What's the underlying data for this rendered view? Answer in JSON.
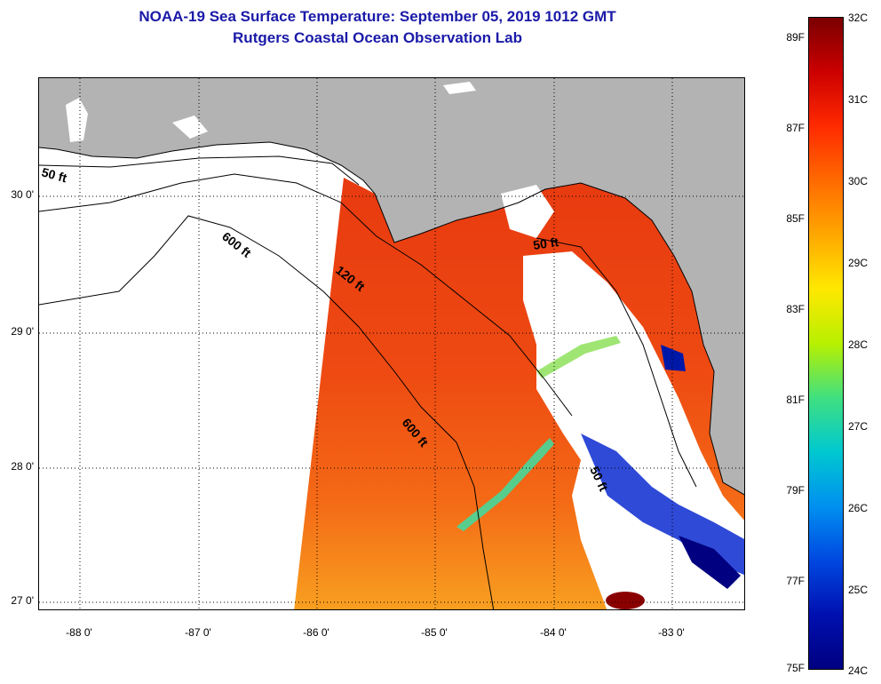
{
  "title_line1": "NOAA-19 Sea Surface Temperature:  September 05, 2019 1012 GMT",
  "title_line2": "Rutgers Coastal Ocean Observation Lab",
  "lat_labels": [
    "30 0'",
    "29 0'",
    "28 0'",
    "27 0'"
  ],
  "lon_labels": [
    "-88 0'",
    "-87 0'",
    "-86 0'",
    "-85 0'",
    "-84 0'",
    "-83 0'"
  ],
  "contour_labels": [
    "50 ft",
    "600 ft",
    "120 ft",
    "50 ft",
    "600 ft",
    "50 ft"
  ],
  "colorbar": {
    "celsius_labels": [
      "32C",
      "31C",
      "30C",
      "29C",
      "28C",
      "27C",
      "26C",
      "25C",
      "24C"
    ],
    "fahrenheit_labels": [
      "89F",
      "87F",
      "85F",
      "83F",
      "81F",
      "79F",
      "77F",
      "75F"
    ],
    "colors": [
      "#7a0000",
      "#cc0000",
      "#ff2a00",
      "#ff6a00",
      "#ffa800",
      "#ffe800",
      "#b8f000",
      "#40e080",
      "#00c8d0",
      "#0090f0",
      "#0048e0",
      "#0010b0",
      "#000080"
    ]
  },
  "colors": {
    "title": "#1a1aa8",
    "land": "#b3b3b3",
    "no_data": "#ffffff"
  }
}
